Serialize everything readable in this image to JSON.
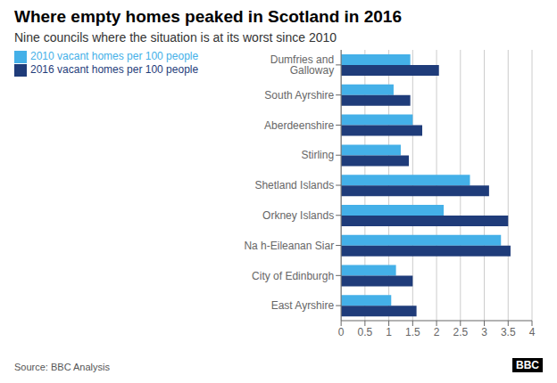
{
  "chart_data": {
    "type": "bar",
    "orientation": "horizontal",
    "title": "Where empty homes peaked in Scotland in 2016",
    "subtitle": "Nine councils where the situation is at its worst since 2010",
    "categories": [
      "Dumfries and Galloway",
      "South Ayrshire",
      "Aberdeenshire",
      "Stirling",
      "Shetland Islands",
      "Orkney Islands",
      "Na h-Eileanan Siar",
      "City of Edinburgh",
      "East Ayrshire"
    ],
    "series": [
      {
        "name": "2010 vacant homes per 100 people",
        "color": "#44b0e8",
        "values": [
          1.45,
          1.1,
          1.5,
          1.25,
          2.7,
          2.15,
          3.35,
          1.15,
          1.05
        ]
      },
      {
        "name": "2016 vacant homes per 100 people",
        "color": "#1f3c7a",
        "values": [
          2.05,
          1.45,
          1.7,
          1.42,
          3.1,
          3.5,
          3.55,
          1.5,
          1.58
        ]
      }
    ],
    "xlim": [
      0,
      4
    ],
    "xticks": [
      0,
      0.5,
      1,
      1.5,
      2,
      2.5,
      3,
      3.5,
      4
    ],
    "grid": true,
    "legend": "top-left",
    "annotations": [
      "Source: BBC Analysis",
      "BBC"
    ]
  }
}
